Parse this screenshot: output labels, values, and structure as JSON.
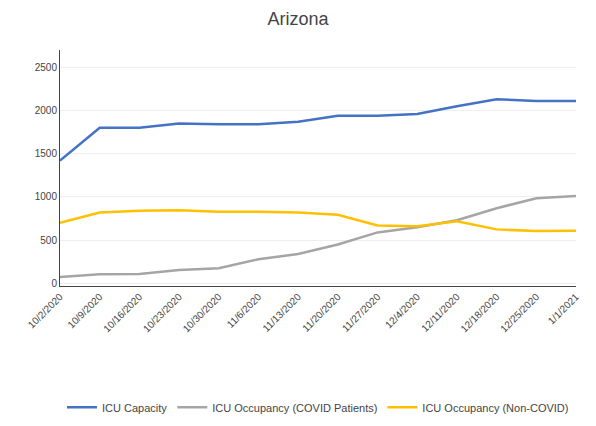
{
  "chart_data": {
    "type": "line",
    "title": "Arizona",
    "categories": [
      "10/2/2020",
      "10/9/2020",
      "10/16/2020",
      "10/23/2020",
      "10/30/2020",
      "11/6/2020",
      "11/13/2020",
      "11/20/2020",
      "11/27/2020",
      "12/4/2020",
      "12/11/2020",
      "12/18/2020",
      "12/25/2020",
      "1/1/2021"
    ],
    "series": [
      {
        "name": "ICU Capacity",
        "color": "#4472C4",
        "values": [
          1420,
          1800,
          1800,
          1850,
          1840,
          1840,
          1870,
          1940,
          1940,
          1960,
          2050,
          2130,
          2110,
          2110
        ]
      },
      {
        "name": "ICU Occupancy (COVID Patients)",
        "color": "#A5A5A5",
        "values": [
          75,
          105,
          110,
          155,
          175,
          280,
          340,
          450,
          590,
          650,
          730,
          870,
          985,
          1011
        ]
      },
      {
        "name": "ICU Occupancy (Non-COVID)",
        "color": "#FFC000",
        "values": [
          700,
          820,
          840,
          845,
          830,
          830,
          820,
          795,
          670,
          660,
          720,
          625,
          605,
          610
        ]
      }
    ],
    "ylim": [
      -30,
      2700
    ],
    "yticks": [
      0,
      500,
      1000,
      1500,
      2000,
      2500
    ],
    "grid": true,
    "legend": "bottom"
  }
}
